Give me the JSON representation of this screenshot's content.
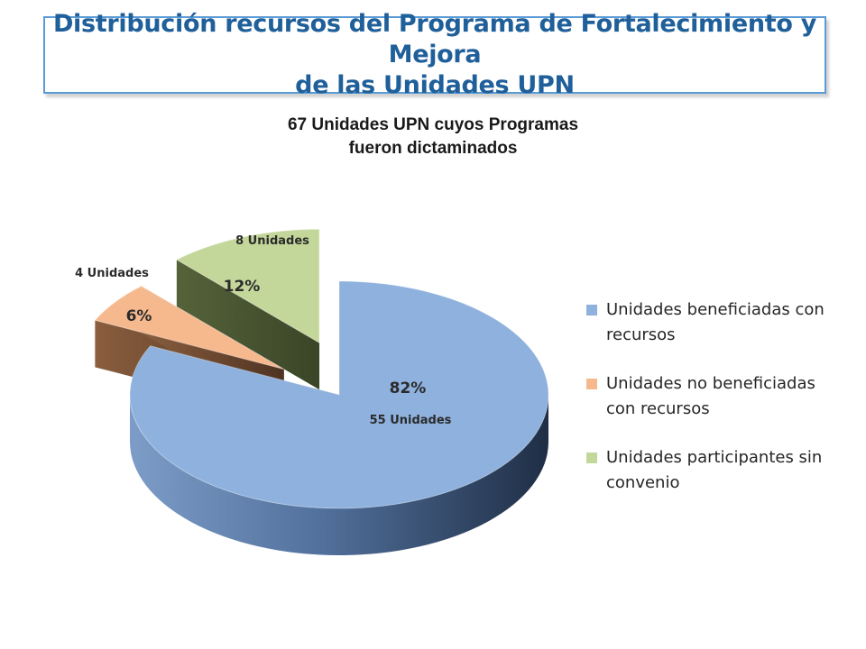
{
  "header": {
    "title": "Distribución recursos del Programa de Fortalecimiento y Mejora\nde las Unidades UPN"
  },
  "chart_data": {
    "type": "pie",
    "title": "67 Unidades UPN cuyos Programas\nfueron dictaminados",
    "categories": [
      "Unidades beneficiadas con recursos",
      "Unidades no beneficiadas con recursos",
      "Unidades participantes sin convenio"
    ],
    "values": [
      55,
      4,
      8
    ],
    "percent_labels": [
      "82%",
      "6%",
      "12%"
    ],
    "count_labels": [
      "55 Unidades",
      "4 Unidades",
      "8 Unidades"
    ],
    "colors": [
      "#8eb1de",
      "#f6b98e",
      "#c4d79b"
    ],
    "exploded": true,
    "style": "3d",
    "legend_position": "right"
  },
  "legend": {
    "items": [
      {
        "label": "Unidades beneficiadas con\nrecursos",
        "color": "#8eb1de"
      },
      {
        "label": "Unidades no beneficiadas\ncon recursos",
        "color": "#f6b98e"
      },
      {
        "label": "Unidades participantes sin\nconvenio",
        "color": "#c4d79b"
      }
    ]
  }
}
